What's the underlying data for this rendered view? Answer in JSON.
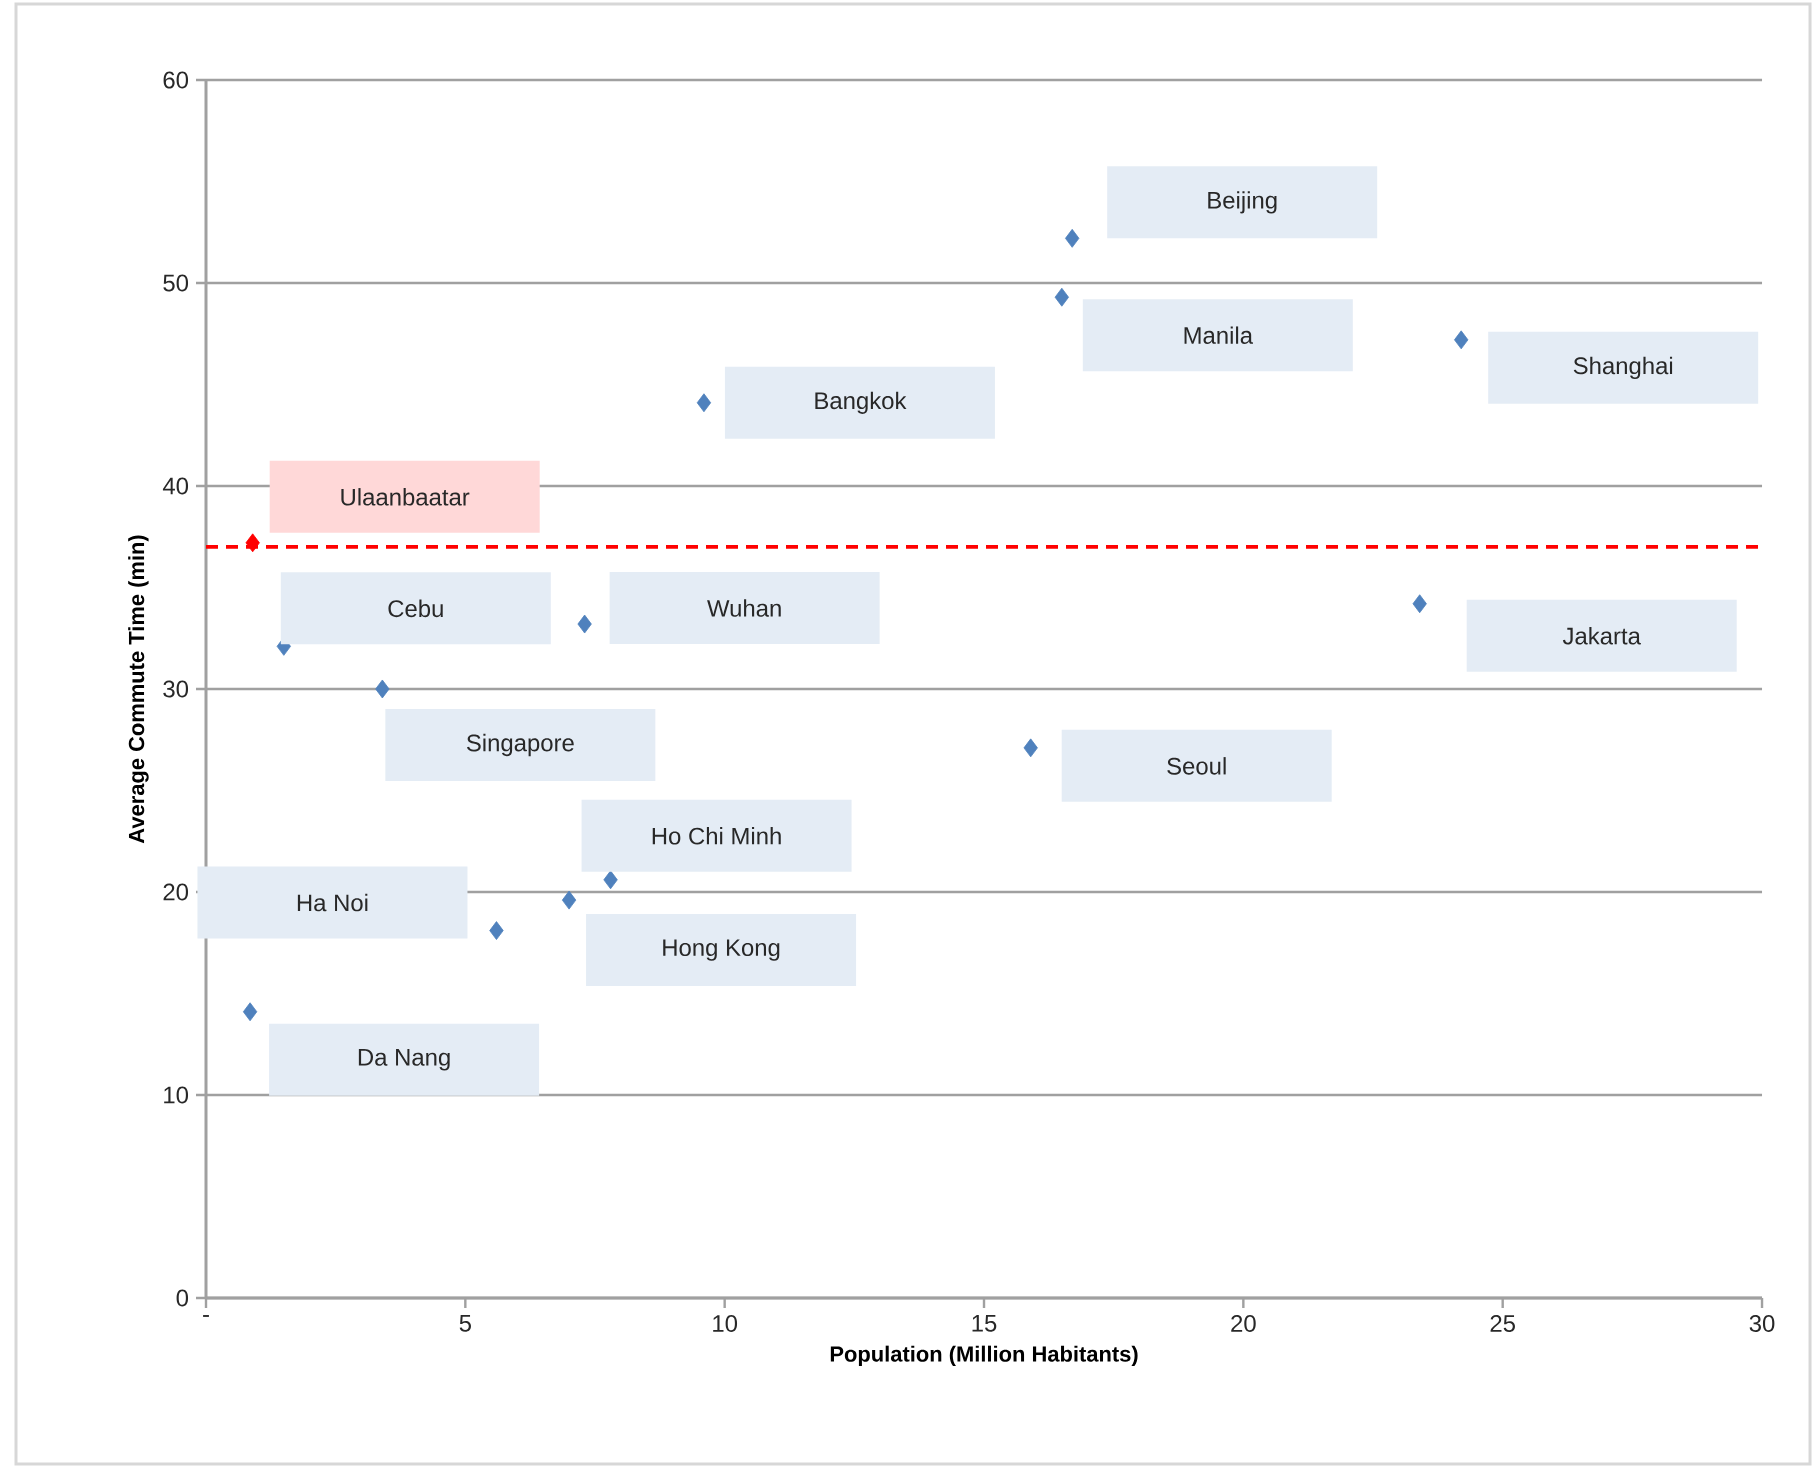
{
  "chart_data": {
    "type": "scatter",
    "xlabel": "Population (Million Habitants)",
    "ylabel": "Average Commute Time (min)",
    "xlim": [
      0,
      30
    ],
    "ylim": [
      0,
      60
    ],
    "xticks": [
      {
        "value": 0,
        "label": "-"
      },
      5,
      10,
      15,
      20,
      25,
      30
    ],
    "yticks": [
      0,
      10,
      20,
      30,
      40,
      50,
      60
    ],
    "grid": "y",
    "marker": "diamond",
    "x": [
      16.7,
      16.5,
      24.2,
      9.6,
      0.9,
      1.5,
      7.3,
      23.4,
      3.4,
      15.9,
      7.8,
      7.0,
      5.6,
      0.85
    ],
    "values": [
      52.2,
      49.3,
      47.2,
      44.1,
      37.2,
      32.1,
      33.2,
      34.2,
      30.0,
      27.1,
      20.6,
      19.6,
      18.1,
      14.1
    ],
    "colors": [
      "#4f81bd",
      "#4f81bd",
      "#4f81bd",
      "#4f81bd",
      "#ff0000",
      "#4f81bd",
      "#4f81bd",
      "#4f81bd",
      "#4f81bd",
      "#4f81bd",
      "#4f81bd",
      "#4f81bd",
      "#4f81bd",
      "#4f81bd"
    ],
    "annotations": [
      "Beijing",
      "Manila",
      "Shanghai",
      "Bangkok",
      "Ulaanbaatar",
      "Cebu",
      "Wuhan",
      "Jakarta",
      "Singapore",
      "Seoul",
      "Ho Chi Minh",
      "Hong Kong",
      "Ha Noi",
      "Da Nang"
    ],
    "ref_lines": [
      {
        "axis": "y",
        "value": 37,
        "color": "#ff0000",
        "line_style": "dashed"
      }
    ]
  }
}
